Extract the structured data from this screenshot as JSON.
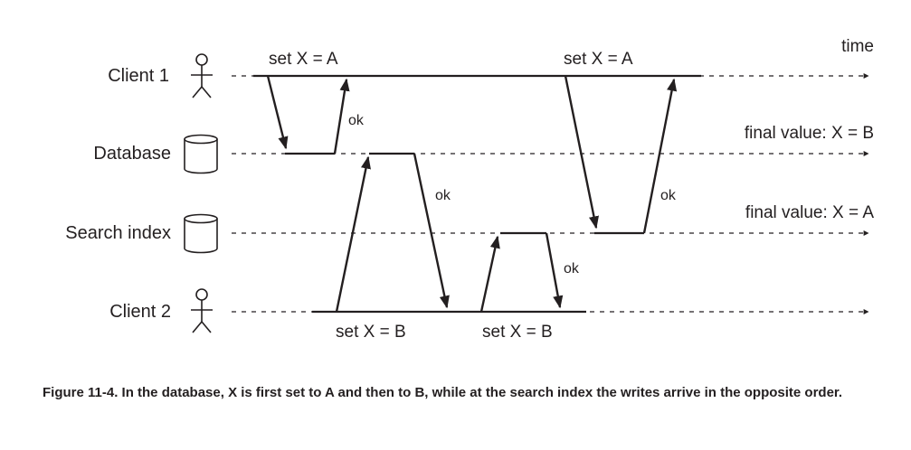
{
  "lanes": {
    "client1": "Client 1",
    "database": "Database",
    "search_index": "Search index",
    "client2": "Client 2"
  },
  "time_label": "time",
  "messages": {
    "client1_write_db": "set X = A",
    "client1_write_index": "set X = A",
    "client2_write_db": "set X = B",
    "client2_write_index": "set X = B",
    "ok": "ok"
  },
  "final_values": {
    "database": "final value: X = B",
    "search_index": "final value: X = A"
  },
  "caption": "Figure 11-4. In the database, X is first set to A and then to B, while at the search index the writes arrive in the opposite order."
}
